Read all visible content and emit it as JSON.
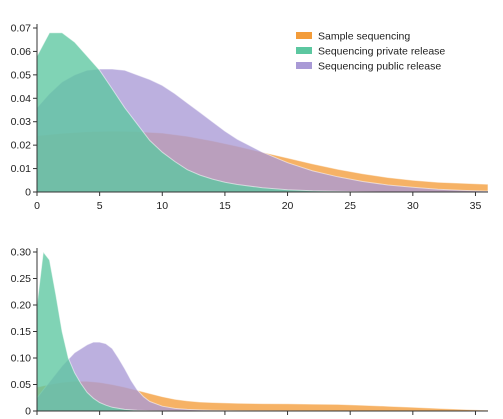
{
  "colors": {
    "sample": "#f39c3a",
    "private": "#5cc7a0",
    "public": "#a99ad6"
  },
  "legend": [
    {
      "key": "sample",
      "label": "Sample sequencing"
    },
    {
      "key": "private",
      "label": "Sequencing private release"
    },
    {
      "key": "public",
      "label": "Sequencing public release"
    }
  ],
  "chart_data": [
    {
      "type": "area",
      "title": "",
      "xlabel": "",
      "ylabel": "",
      "xlim": [
        0,
        36
      ],
      "ylim": [
        0,
        0.07
      ],
      "x_ticks": [
        0,
        5,
        10,
        15,
        20,
        25,
        30,
        35
      ],
      "x_tick_labels": [
        "0",
        "5",
        "10",
        "15",
        "20",
        "25",
        "30",
        "35"
      ],
      "y_ticks": [
        0,
        0.01,
        0.02,
        0.03,
        0.04,
        0.05,
        0.06,
        0.07
      ],
      "y_tick_labels": [
        "0",
        "0.01",
        "0.02",
        "0.03",
        "0.04",
        "0.05",
        "0.06",
        "0.07"
      ],
      "legend_position": "top-right",
      "series": [
        {
          "key": "sample",
          "name": "Sample sequencing",
          "x": [
            0,
            2,
            4,
            6,
            8,
            10,
            12,
            14,
            16,
            18,
            20,
            22,
            24,
            26,
            28,
            30,
            32,
            34,
            36
          ],
          "y": [
            0.024,
            0.025,
            0.0257,
            0.026,
            0.0258,
            0.0252,
            0.0238,
            0.0218,
            0.0195,
            0.017,
            0.0145,
            0.012,
            0.0097,
            0.0078,
            0.0062,
            0.005,
            0.0042,
            0.0037,
            0.0033
          ]
        },
        {
          "key": "private",
          "name": "Sequencing private release",
          "x": [
            0,
            1,
            2,
            3,
            4,
            5,
            6,
            7,
            8,
            9,
            10,
            11,
            12,
            13,
            14,
            15,
            16,
            18,
            20,
            22,
            24,
            26,
            28,
            30,
            32,
            34,
            36
          ],
          "y": [
            0.058,
            0.068,
            0.068,
            0.064,
            0.058,
            0.052,
            0.044,
            0.036,
            0.029,
            0.022,
            0.017,
            0.013,
            0.0095,
            0.0072,
            0.0055,
            0.0042,
            0.0032,
            0.0018,
            0.001,
            0.0005,
            0.0003,
            0.0001,
            0,
            0,
            0,
            0,
            0
          ]
        },
        {
          "key": "public",
          "name": "Sequencing public release",
          "x": [
            0,
            1,
            2,
            3,
            4,
            5,
            6,
            7,
            8,
            9,
            10,
            11,
            12,
            13,
            14,
            15,
            16,
            18,
            20,
            22,
            24,
            26,
            28,
            30,
            32,
            34,
            36
          ],
          "y": [
            0.036,
            0.042,
            0.047,
            0.05,
            0.052,
            0.0525,
            0.0525,
            0.052,
            0.05,
            0.048,
            0.0455,
            0.042,
            0.038,
            0.034,
            0.03,
            0.026,
            0.0225,
            0.017,
            0.0125,
            0.009,
            0.0065,
            0.0045,
            0.003,
            0.002,
            0.0012,
            0.0007,
            0.0004
          ]
        }
      ]
    },
    {
      "type": "area",
      "title": "",
      "xlabel": "",
      "ylabel": "",
      "xlim": [
        0,
        36
      ],
      "ylim": [
        0,
        0.3
      ],
      "x_ticks": [
        0,
        5,
        10,
        15,
        20,
        25,
        30,
        35
      ],
      "x_tick_labels": [],
      "y_ticks": [
        0,
        0.05,
        0.1,
        0.15,
        0.2,
        0.25,
        0.3
      ],
      "y_tick_labels": [
        "0",
        "0.05",
        "0.10",
        "0.15",
        "0.20",
        "0.25",
        "0.30"
      ],
      "series": [
        {
          "key": "sample",
          "name": "Sample sequencing",
          "x": [
            0,
            1,
            2,
            3,
            4,
            5,
            6,
            7,
            8,
            9,
            10,
            11,
            12,
            13,
            14,
            16,
            18,
            20,
            22,
            24,
            26,
            28,
            30,
            32,
            34,
            36
          ],
          "y": [
            0.045,
            0.05,
            0.054,
            0.056,
            0.056,
            0.054,
            0.05,
            0.045,
            0.039,
            0.033,
            0.027,
            0.022,
            0.019,
            0.017,
            0.016,
            0.0145,
            0.014,
            0.0135,
            0.013,
            0.0125,
            0.011,
            0.009,
            0.007,
            0.005,
            0.003,
            0.0015
          ]
        },
        {
          "key": "private",
          "name": "Sequencing private release",
          "x": [
            0,
            0.5,
            1,
            1.5,
            2,
            2.5,
            3,
            3.5,
            4,
            4.5,
            5,
            5.5,
            6,
            7,
            8,
            9,
            10,
            12,
            14,
            16,
            18,
            20,
            24,
            28,
            32,
            36
          ],
          "y": [
            0.2,
            0.3,
            0.285,
            0.22,
            0.15,
            0.1,
            0.072,
            0.052,
            0.035,
            0.024,
            0.016,
            0.011,
            0.007,
            0.003,
            0.0015,
            0.0008,
            0.0004,
            0.0001,
            0,
            0,
            0,
            0,
            0,
            0,
            0,
            0
          ]
        },
        {
          "key": "public",
          "name": "Sequencing public release",
          "x": [
            0,
            1,
            2,
            3,
            4,
            4.5,
            5,
            5.5,
            6,
            6.5,
            7,
            7.5,
            8,
            8.5,
            9,
            10,
            11,
            12,
            13,
            14,
            16,
            18,
            20,
            24,
            28,
            32,
            36
          ],
          "y": [
            0.025,
            0.055,
            0.085,
            0.11,
            0.125,
            0.13,
            0.13,
            0.127,
            0.118,
            0.1,
            0.08,
            0.058,
            0.04,
            0.027,
            0.018,
            0.009,
            0.005,
            0.003,
            0.002,
            0.0015,
            0.0008,
            0.0004,
            0.0002,
            0,
            0,
            0,
            0
          ]
        }
      ]
    }
  ]
}
